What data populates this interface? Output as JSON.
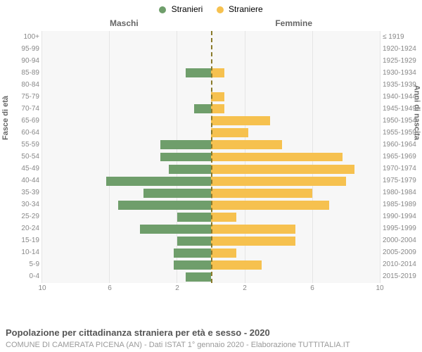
{
  "legend": {
    "male": {
      "label": "Stranieri",
      "color": "#6f9e6b"
    },
    "female": {
      "label": "Straniere",
      "color": "#f6c14f"
    }
  },
  "headers": {
    "male": "Maschi",
    "female": "Femmine"
  },
  "axis_left_label": "Fasce di età",
  "axis_right_label": "Anni di nascita",
  "x_max": 10,
  "x_ticks_left": [
    10,
    6,
    2
  ],
  "x_ticks_right": [
    2,
    6,
    10
  ],
  "grid_positions": [
    2,
    6,
    10
  ],
  "grid_color": "#e5e5e5",
  "background_color": "#f7f7f7",
  "center_line_color": "#8a7a2a",
  "bars_male_color": "#6f9e6b",
  "bars_female_color": "#f6c14f",
  "rows": [
    {
      "age": "100+",
      "birth": "≤ 1919",
      "m": 0,
      "f": 0
    },
    {
      "age": "95-99",
      "birth": "1920-1924",
      "m": 0,
      "f": 0
    },
    {
      "age": "90-94",
      "birth": "1925-1929",
      "m": 0,
      "f": 0
    },
    {
      "age": "85-89",
      "birth": "1930-1934",
      "m": 1.5,
      "f": 0.8
    },
    {
      "age": "80-84",
      "birth": "1935-1939",
      "m": 0,
      "f": 0
    },
    {
      "age": "75-79",
      "birth": "1940-1944",
      "m": 0,
      "f": 0.8
    },
    {
      "age": "70-74",
      "birth": "1945-1949",
      "m": 1,
      "f": 0.8
    },
    {
      "age": "65-69",
      "birth": "1950-1954",
      "m": 0,
      "f": 3.5
    },
    {
      "age": "60-64",
      "birth": "1955-1959",
      "m": 0,
      "f": 2.2
    },
    {
      "age": "55-59",
      "birth": "1960-1964",
      "m": 3,
      "f": 4.2
    },
    {
      "age": "50-54",
      "birth": "1965-1969",
      "m": 3,
      "f": 7.8
    },
    {
      "age": "45-49",
      "birth": "1970-1974",
      "m": 2.5,
      "f": 8.5
    },
    {
      "age": "40-44",
      "birth": "1975-1979",
      "m": 6.2,
      "f": 8
    },
    {
      "age": "35-39",
      "birth": "1980-1984",
      "m": 4,
      "f": 6
    },
    {
      "age": "30-34",
      "birth": "1985-1989",
      "m": 5.5,
      "f": 7
    },
    {
      "age": "25-29",
      "birth": "1990-1994",
      "m": 2,
      "f": 1.5
    },
    {
      "age": "20-24",
      "birth": "1995-1999",
      "m": 4.2,
      "f": 5
    },
    {
      "age": "15-19",
      "birth": "2000-2004",
      "m": 2,
      "f": 5
    },
    {
      "age": "10-14",
      "birth": "2005-2009",
      "m": 2.2,
      "f": 1.5
    },
    {
      "age": "5-9",
      "birth": "2010-2014",
      "m": 2.2,
      "f": 3
    },
    {
      "age": "0-4",
      "birth": "2015-2019",
      "m": 1.5,
      "f": 0
    }
  ],
  "title": "Popolazione per cittadinanza straniera per età e sesso - 2020",
  "subtitle": "COMUNE DI CAMERATA PICENA (AN) - Dati ISTAT 1° gennaio 2020 - Elaborazione TUTTITALIA.IT",
  "title_fontsize": 13,
  "subtitle_fontsize": 11,
  "label_fontsize": 10
}
